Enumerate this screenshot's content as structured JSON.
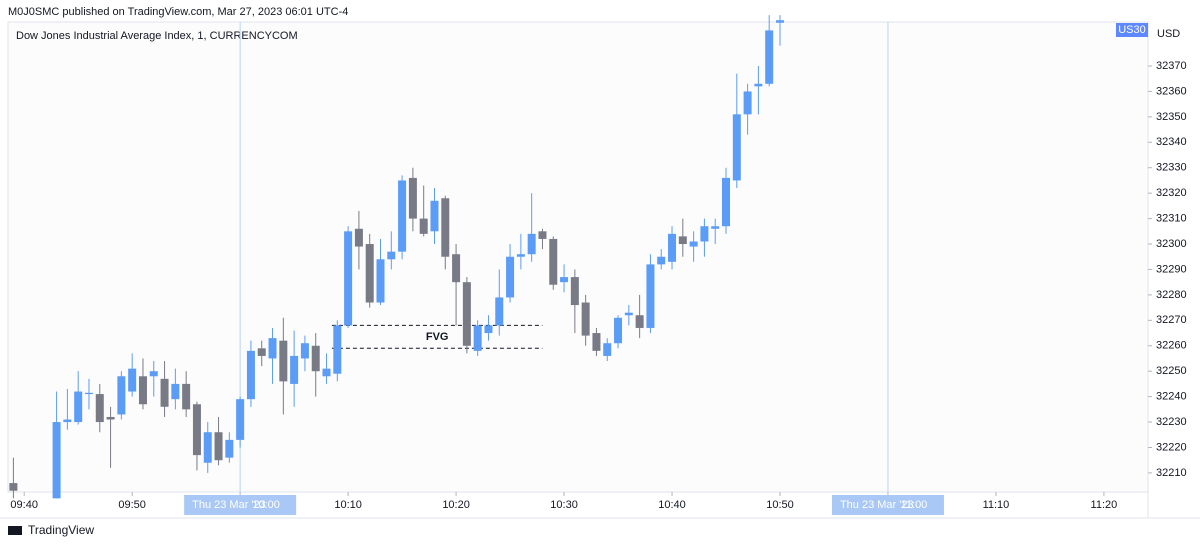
{
  "chart_data": {
    "type": "candlestick",
    "header": "M0J0SMC published on TradingView.com, Mar 27, 2023 06:01 UTC-4",
    "title": "Dow Jones Industrial Average Index, 1, CURRENCYCOM",
    "symbol": "US30",
    "currency": "USD",
    "brand": "TradingView",
    "up_color": "#5b9cf6",
    "down_color": "#787b86",
    "x": [
      "09:39",
      "09:43",
      "09:44",
      "09:45",
      "09:46",
      "09:47",
      "09:48",
      "09:49",
      "09:50",
      "09:51",
      "09:52",
      "09:53",
      "09:54",
      "09:55",
      "09:56",
      "09:57",
      "09:58",
      "09:59",
      "10:00",
      "10:01",
      "10:02",
      "10:03",
      "10:04",
      "10:05",
      "10:06",
      "10:07",
      "10:08",
      "10:09",
      "10:10",
      "10:11",
      "10:12",
      "10:13",
      "10:14",
      "10:15",
      "10:16",
      "10:17",
      "10:18",
      "10:19",
      "10:20",
      "10:21",
      "10:22",
      "10:23",
      "10:24",
      "10:25",
      "10:26",
      "10:27",
      "10:28",
      "10:29",
      "10:30",
      "10:31",
      "10:32",
      "10:33",
      "10:34",
      "10:35",
      "10:36",
      "10:37",
      "10:38",
      "10:39",
      "10:40",
      "10:41",
      "10:42",
      "10:43",
      "10:44",
      "10:45",
      "10:46",
      "10:47",
      "10:48",
      "10:49",
      "10:50"
    ],
    "open": [
      32206,
      32200,
      32230,
      32230,
      32241,
      32241,
      32232,
      32233,
      32242,
      32248,
      32248,
      32247,
      32239,
      32245,
      32237,
      32214,
      32226,
      32216,
      32223,
      32239,
      32259,
      32255,
      32262,
      32245,
      32255,
      32260,
      32248,
      32249,
      32268,
      32306,
      32300,
      32277,
      32294,
      32297,
      32326,
      32310,
      32305,
      32318,
      32296,
      32285,
      32258,
      32265,
      32268,
      32279,
      32295,
      32296,
      32305,
      32302,
      32285,
      32287,
      32277,
      32265,
      32256,
      32261,
      32272,
      32272,
      32267,
      32292,
      32293,
      32303,
      32299,
      32301,
      32306,
      32307,
      32325,
      32351,
      32362,
      32363,
      32387
    ],
    "high": [
      32216,
      32242,
      32243,
      32250,
      32247,
      32245,
      32236,
      32250,
      32257,
      32255,
      32254,
      32254,
      32251,
      32250,
      32238,
      32230,
      32232,
      32226,
      32240,
      32262,
      32262,
      32267,
      32271,
      32266,
      32264,
      32265,
      32257,
      32270,
      32307,
      32313,
      32304,
      32302,
      32305,
      32327,
      32330,
      32323,
      32322,
      32319,
      32300,
      32287,
      32270,
      32272,
      32290,
      32300,
      32304,
      32320,
      32306,
      32303,
      32292,
      32290,
      32280,
      32267,
      32263,
      32272,
      32276,
      32280,
      32296,
      32298,
      32307,
      32310,
      32305,
      32310,
      32310,
      32330,
      32367,
      32363,
      32370,
      32390,
      32390
    ],
    "low": [
      32200,
      32200,
      32227,
      32229,
      32235,
      32226,
      32212,
      32231,
      32240,
      32235,
      32240,
      32232,
      32235,
      32232,
      32211,
      32210,
      32213,
      32214,
      32220,
      32236,
      32252,
      32245,
      32233,
      32236,
      32250,
      32240,
      32245,
      32246,
      32267,
      32290,
      32275,
      32276,
      32290,
      32294,
      32305,
      32303,
      32300,
      32290,
      32268,
      32257,
      32256,
      32262,
      32264,
      32277,
      32290,
      32293,
      32298,
      32282,
      32281,
      32265,
      32260,
      32256,
      32254,
      32259,
      32268,
      32263,
      32265,
      32290,
      32290,
      32295,
      32293,
      32295,
      32300,
      32304,
      32322,
      32343,
      32351,
      32362,
      32378
    ],
    "close": [
      32203,
      32230,
      32231,
      32242,
      32241.5,
      32230,
      32231,
      32248,
      32251,
      32237,
      32250,
      32236,
      32245,
      32235,
      32217,
      32226,
      32215,
      32223,
      32239,
      32258,
      32256,
      32263,
      32246,
      32256,
      32261,
      32250,
      32251,
      32268,
      32305,
      32299,
      32277,
      32294,
      32297,
      32325,
      32310,
      32304,
      32317,
      32295,
      32285,
      32260,
      32268,
      32268,
      32279,
      32295,
      32296,
      32304,
      32302,
      32284,
      32287,
      32276,
      32264,
      32258,
      32261,
      32271,
      32273,
      32267,
      32292,
      32295,
      32304,
      32300,
      32301,
      32307,
      32307,
      32326,
      32351,
      32360,
      32363,
      32384,
      32388
    ],
    "xlim": [
      "09:38:30",
      "11:24:05"
    ],
    "xticks": [
      "09:40",
      "09:50",
      "10:00",
      "10:10",
      "10:20",
      "10:30",
      "10:40",
      "10:50",
      "11:00",
      "11:10",
      "11:20"
    ],
    "ylim": [
      32202.5,
      32387.3
    ],
    "yticks": [
      32210,
      32220,
      32230,
      32240,
      32250,
      32260,
      32270,
      32280,
      32290,
      32300,
      32310,
      32320,
      32330,
      32340,
      32350,
      32360,
      32370
    ],
    "day_markers": [
      {
        "date": "Thu 23 Mar '23",
        "time": "10:00"
      },
      {
        "date": "Thu 23 Mar '23",
        "time": "11:00"
      }
    ],
    "zone": {
      "label": "FVG",
      "top": 32268,
      "bottom": 32259,
      "start": "10:08:30",
      "end": "10:28"
    }
  }
}
